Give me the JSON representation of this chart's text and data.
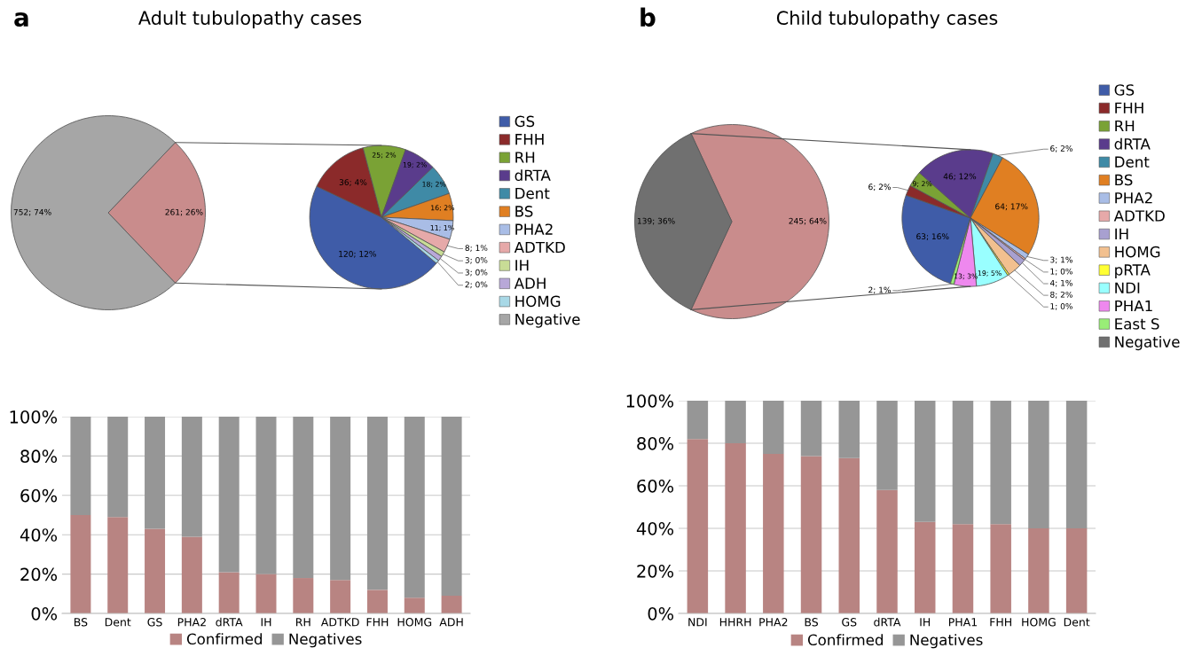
{
  "chart_data": [
    {
      "type": "pie",
      "title": "Adult tubulopathy cases",
      "annotations": [
        "a"
      ],
      "categories": [
        null,
        "Negative"
      ],
      "values": [
        261,
        752
      ],
      "value_labels": [
        "261; 26%",
        "752; 74%"
      ],
      "colors": [
        "#c98c8c",
        "#a6a6a6"
      ]
    },
    {
      "type": "pie",
      "categories": [
        "GS",
        "FHH",
        "RH",
        "dRTA",
        "Dent",
        "BS",
        "PHA2",
        "ADTKD",
        "IH",
        "ADH",
        "HOMG"
      ],
      "values": [
        120,
        36,
        25,
        19,
        18,
        16,
        11,
        8,
        3,
        3,
        2
      ],
      "value_labels": [
        "120; 12%",
        "36; 4%",
        "25; 2%",
        "19; 2%",
        "18; 2%",
        "16; 2%",
        "11; 1%",
        "8; 1%",
        "3; 0%",
        "3; 0%",
        "2; 0%"
      ],
      "colors": [
        "#3f5ca8",
        "#8b2a2a",
        "#7aa235",
        "#5a3c8c",
        "#3f8aa6",
        "#e07f22",
        "#a9bde6",
        "#e6a9a9",
        "#c8dc96",
        "#b8a8d8",
        "#a8d8e6"
      ],
      "legend": "right"
    },
    {
      "type": "pie",
      "title": "Child tubulopathy cases",
      "annotations": [
        "b"
      ],
      "categories": [
        null,
        "Negative"
      ],
      "values": [
        245,
        139
      ],
      "value_labels": [
        "245; 64%",
        "139; 36%"
      ],
      "colors": [
        "#c98c8c",
        "#707070"
      ]
    },
    {
      "type": "pie",
      "categories": [
        "GS",
        "FHH",
        "RH",
        "dRTA",
        "Dent",
        "BS",
        "PHA2",
        "ADTKD",
        "IH",
        "HOMG",
        "pRTA",
        "NDI",
        "PHA1",
        "East S"
      ],
      "values": [
        63,
        6,
        9,
        46,
        6,
        64,
        3,
        1,
        4,
        8,
        1,
        19,
        13,
        2
      ],
      "value_labels": [
        "63; 16%",
        "6; 2%",
        "9; 2%",
        "46; 12%",
        "6; 2%",
        "64; 17%",
        "3; 1%",
        "1; 0%",
        "4; 1%",
        "8; 2%",
        "1; 0%",
        "19; 5%",
        "13; 3%",
        "2; 1%"
      ],
      "colors": [
        "#3f5ca8",
        "#8b2a2a",
        "#7aa235",
        "#5a3c8c",
        "#3f8aa6",
        "#e07f22",
        "#a9bde6",
        "#e6a9a9",
        "#a8a0d0",
        "#f2c08f",
        "#ffff33",
        "#99ffff",
        "#ee88ee",
        "#99ee77"
      ],
      "legend": "right"
    },
    {
      "type": "bar",
      "stacked": true,
      "categories": [
        "BS",
        "Dent",
        "GS",
        "PHA2",
        "dRTA",
        "IH",
        "RH",
        "ADTKD",
        "FHH",
        "HOMG",
        "ADH"
      ],
      "series": [
        {
          "name": "Confirmed",
          "color": "#b88482",
          "values": [
            50,
            49,
            43,
            39,
            21,
            20,
            18,
            17,
            12,
            8,
            9
          ]
        },
        {
          "name": "Negatives",
          "color": "#969696",
          "values": [
            50,
            51,
            57,
            61,
            79,
            80,
            82,
            83,
            88,
            92,
            91
          ]
        }
      ],
      "ylim": [
        0,
        100
      ],
      "yticks": [
        {
          "value": 0,
          "label": "0%"
        },
        {
          "value": 20,
          "label": "20%"
        },
        {
          "value": 40,
          "label": "40%"
        },
        {
          "value": 60,
          "label": "60%"
        },
        {
          "value": 80,
          "label": "80%"
        },
        {
          "value": 100,
          "label": "100%"
        }
      ],
      "grid": "y",
      "legend": "bottom"
    },
    {
      "type": "bar",
      "stacked": true,
      "categories": [
        "NDI",
        "HHRH",
        "PHA2",
        "BS",
        "GS",
        "dRTA",
        "IH",
        "PHA1",
        "FHH",
        "HOMG",
        "Dent"
      ],
      "series": [
        {
          "name": "Confirmed",
          "color": "#b88482",
          "values": [
            82,
            80,
            75,
            74,
            73,
            58,
            43,
            42,
            42,
            40,
            40
          ]
        },
        {
          "name": "Negatives",
          "color": "#969696",
          "values": [
            18,
            20,
            25,
            26,
            27,
            42,
            57,
            58,
            58,
            60,
            60
          ]
        }
      ],
      "ylim": [
        0,
        100
      ],
      "yticks": [
        {
          "value": 0,
          "label": "0%"
        },
        {
          "value": 20,
          "label": "20%"
        },
        {
          "value": 40,
          "label": "40%"
        },
        {
          "value": 60,
          "label": "60%"
        },
        {
          "value": 80,
          "label": "80%"
        },
        {
          "value": 100,
          "label": "100%"
        }
      ],
      "grid": "y",
      "legend": "bottom"
    }
  ]
}
